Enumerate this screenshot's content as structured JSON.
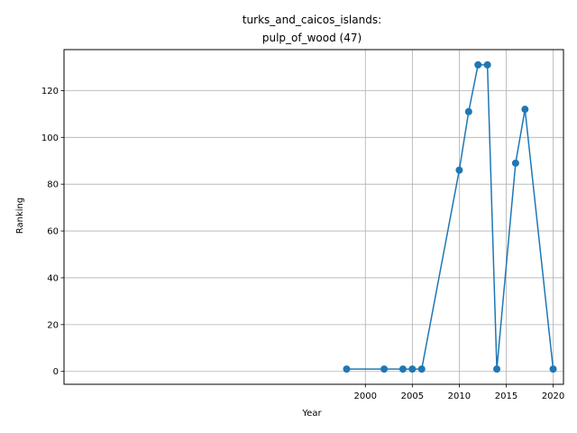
{
  "chart_data": {
    "type": "line",
    "title_line1": "turks_and_caicos_islands:",
    "title_line2": "pulp_of_wood (47)",
    "xlabel": "Year",
    "ylabel": "Ranking",
    "xlim": [
      1967.9,
      2021.1
    ],
    "ylim": [
      -5.5,
      137.5
    ],
    "x_ticks": [
      2000,
      2005,
      2010,
      2015,
      2020
    ],
    "y_ticks": [
      0,
      20,
      40,
      60,
      80,
      100,
      120
    ],
    "grid": true,
    "colors": {
      "series": "#1f77b4",
      "grid": "#b0b0b0",
      "axis": "#000000"
    },
    "series": [
      {
        "x": [
          1998,
          2002,
          2004,
          2005,
          2006,
          2010,
          2011,
          2012,
          2013,
          2014,
          2016,
          2017,
          2020
        ],
        "y": [
          1,
          1,
          1,
          1,
          1,
          86,
          111,
          131,
          131,
          1,
          89,
          112,
          1
        ]
      }
    ]
  }
}
